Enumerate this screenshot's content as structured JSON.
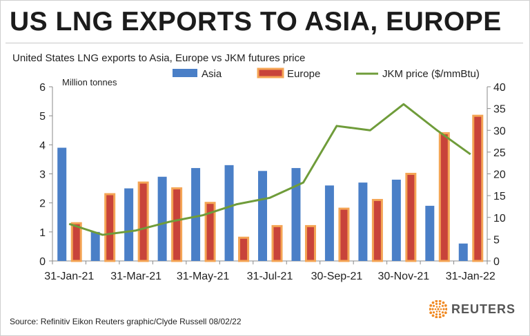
{
  "headline": "US LNG EXPORTS TO ASIA, EUROPE",
  "footer": {
    "source": "Source: Refinitiv Eikon    Reuters graphic/Clyde Russell 08/02/22",
    "brand": "REUTERS"
  },
  "colors": {
    "asia": "#4a7fc7",
    "europe_fill": "#c8433a",
    "europe_border": "#f4a555",
    "jkm": "#6f9c3a",
    "logo_orange": "#f08a24"
  },
  "chart_data": {
    "type": "bar",
    "title": "United States LNG exports to Asia, Europe vs JKM futures price",
    "ylabel": "Million tonnes",
    "ylim": [
      0,
      6
    ],
    "y_ticks": [
      0,
      1,
      2,
      3,
      4,
      5,
      6
    ],
    "y2lim": [
      0,
      40
    ],
    "y2_ticks": [
      0,
      5,
      10,
      15,
      20,
      25,
      30,
      35,
      40
    ],
    "x_tick_labels": [
      "31-Jan-21",
      "31-Mar-21",
      "31-May-21",
      "31-Jul-21",
      "30-Sep-21",
      "30-Nov-21",
      "31-Jan-22"
    ],
    "categories": [
      "Jan-21",
      "Feb-21",
      "Mar-21",
      "Apr-21",
      "May-21",
      "Jun-21",
      "Jul-21",
      "Aug-21",
      "Sep-21",
      "Oct-21",
      "Nov-21",
      "Dec-21",
      "Jan-22"
    ],
    "series": [
      {
        "name": "Asia",
        "type": "bar",
        "axis": "left",
        "values": [
          3.9,
          1.0,
          2.5,
          2.9,
          3.2,
          3.3,
          3.1,
          3.2,
          2.6,
          2.7,
          2.8,
          1.9,
          0.6
        ]
      },
      {
        "name": "Europe",
        "type": "bar",
        "axis": "left",
        "values": [
          1.3,
          2.3,
          2.7,
          2.5,
          2.0,
          0.8,
          1.2,
          1.2,
          1.8,
          2.1,
          3.0,
          4.4,
          5.0
        ]
      },
      {
        "name": "JKM price ($/mmBtu)",
        "type": "line",
        "axis": "right",
        "values": [
          8.5,
          6.0,
          7.0,
          9.0,
          10.5,
          13.0,
          14.5,
          18.0,
          31.0,
          30.0,
          36.0,
          30.0,
          24.5
        ]
      }
    ],
    "legend_position": "top",
    "grid": false
  }
}
